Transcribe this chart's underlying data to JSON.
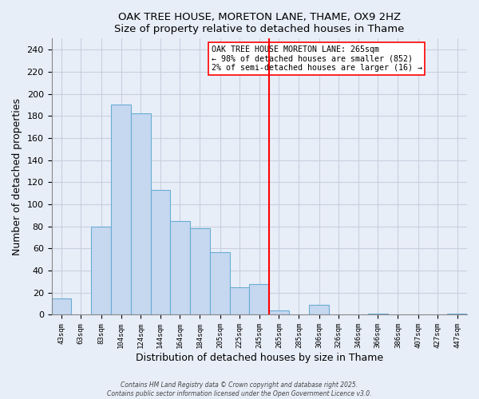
{
  "title": "OAK TREE HOUSE, MORETON LANE, THAME, OX9 2HZ",
  "subtitle": "Size of property relative to detached houses in Thame",
  "xlabel": "Distribution of detached houses by size in Thame",
  "ylabel": "Number of detached properties",
  "bin_labels": [
    "43sqm",
    "63sqm",
    "83sqm",
    "104sqm",
    "124sqm",
    "144sqm",
    "164sqm",
    "184sqm",
    "205sqm",
    "225sqm",
    "245sqm",
    "265sqm",
    "285sqm",
    "306sqm",
    "326sqm",
    "346sqm",
    "366sqm",
    "386sqm",
    "407sqm",
    "427sqm",
    "447sqm"
  ],
  "bin_edges": [
    43,
    63,
    83,
    104,
    124,
    144,
    164,
    184,
    205,
    225,
    245,
    265,
    285,
    306,
    326,
    346,
    366,
    386,
    407,
    427,
    447
  ],
  "bar_heights": [
    15,
    0,
    80,
    190,
    182,
    113,
    85,
    78,
    57,
    25,
    28,
    4,
    0,
    9,
    0,
    0,
    1,
    0,
    0,
    0,
    1
  ],
  "bar_color": "#c5d8f0",
  "bar_edge_color": "#6aacd4",
  "vline_x": 265,
  "vline_color": "red",
  "ylim": [
    0,
    250
  ],
  "yticks": [
    0,
    20,
    40,
    60,
    80,
    100,
    120,
    140,
    160,
    180,
    200,
    220,
    240
  ],
  "annotation_title": "OAK TREE HOUSE MORETON LANE: 265sqm",
  "annotation_line1": "← 98% of detached houses are smaller (852)",
  "annotation_line2": "2% of semi-detached houses are larger (16) →",
  "annotation_box_facecolor": "white",
  "annotation_box_edgecolor": "red",
  "footer_line1": "Contains HM Land Registry data © Crown copyright and database right 2025.",
  "footer_line2": "Contains public sector information licensed under the Open Government Licence v3.0.",
  "background_color": "#e8eef8",
  "grid_color": "#c8d0e0"
}
